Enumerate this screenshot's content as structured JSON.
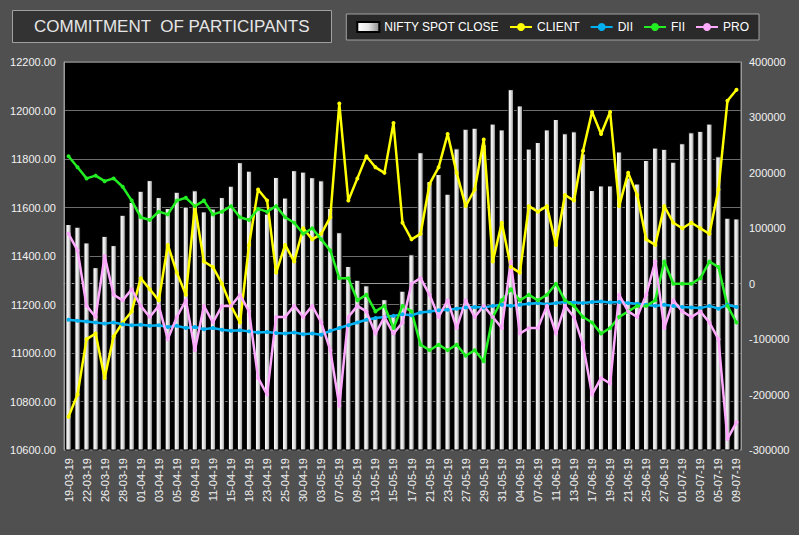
{
  "chart_data": {
    "type": "bar",
    "title": "COMMITMENT  OF PARTICIPANTS",
    "categories": [
      "19-03-19",
      null,
      "22-03-19",
      null,
      "26-03-19",
      null,
      "28-03-19",
      null,
      "01-04-19",
      null,
      "03-04-19",
      null,
      "05-04-19",
      null,
      "09-04-19",
      null,
      "11-04-19",
      null,
      "15-04-19",
      null,
      "18-04-19",
      null,
      "23-04-19",
      null,
      "25-04-19",
      null,
      "30-04-19",
      null,
      "03-05-19",
      null,
      "07-05-19",
      null,
      "09-05-19",
      null,
      "13-05-19",
      null,
      "15-05-19",
      null,
      "17-05-19",
      null,
      "21-05-19",
      null,
      "23-05-19",
      null,
      "27-05-19",
      null,
      "29-05-19",
      null,
      "31-05-19",
      null,
      "04-06-19",
      null,
      "07-06-19",
      null,
      "11-06-19",
      null,
      "13-06-19",
      null,
      "17-06-19",
      null,
      "19-06-19",
      null,
      "21-06-19",
      null,
      "25-06-19",
      null,
      "27-06-19",
      null,
      "01-07-19",
      null,
      "03-07-19",
      null,
      "05-07-19",
      null,
      "09-07-19"
    ],
    "series": [
      {
        "name": "NIFTY SPOT CLOSE",
        "type": "bar",
        "color": "#e6e6e6",
        "values": [
          11532,
          11521,
          11456,
          11354,
          11483,
          11445,
          11570,
          11623,
          11669,
          11713,
          11643,
          11598,
          11665,
          11604,
          11671,
          11584,
          11596,
          11643,
          11690,
          11787,
          11752,
          11594,
          11575,
          11726,
          11641,
          11754,
          11748,
          11725,
          11712,
          11598,
          11498,
          11359,
          11302,
          11279,
          11148,
          11222,
          11157,
          11257,
          11407,
          11828,
          11709,
          11738,
          11657,
          11844,
          11925,
          11929,
          11861,
          11946,
          11922,
          12088,
          12021,
          11843,
          11870,
          11922,
          11965,
          11906,
          11914,
          11823,
          11672,
          11691,
          11691,
          11831,
          11724,
          11699,
          11796,
          11847,
          11842,
          11789,
          11865,
          11910,
          11916,
          11946,
          11811,
          11558,
          11555
        ]
      },
      {
        "name": "CLIENT",
        "type": "line",
        "axis": "y2",
        "color": "#ffff00",
        "marker": "circle",
        "values": [
          -240000,
          -200000,
          -100000,
          -90000,
          -170000,
          -95000,
          -70000,
          -50000,
          10000,
          -10000,
          -30000,
          70000,
          20000,
          -20000,
          140000,
          40000,
          30000,
          0,
          -40000,
          -70000,
          70000,
          170000,
          150000,
          20000,
          70000,
          40000,
          100000,
          80000,
          90000,
          120000,
          325000,
          150000,
          190000,
          230000,
          210000,
          200000,
          290000,
          110000,
          80000,
          90000,
          180000,
          210000,
          270000,
          200000,
          140000,
          170000,
          260000,
          40000,
          110000,
          30000,
          20000,
          140000,
          130000,
          140000,
          70000,
          160000,
          150000,
          240000,
          310000,
          270000,
          310000,
          140000,
          200000,
          160000,
          80000,
          70000,
          140000,
          110000,
          100000,
          110000,
          100000,
          90000,
          170000,
          330000,
          350000
        ]
      },
      {
        "name": "DII",
        "type": "line",
        "axis": "y2",
        "color": "#00b0f0",
        "marker": "circle",
        "values": [
          -65000,
          -67000,
          -68000,
          -70000,
          -72000,
          -70000,
          -73000,
          -75000,
          -74000,
          -76000,
          -75000,
          -78000,
          -76000,
          -80000,
          -78000,
          -82000,
          -80000,
          -83000,
          -85000,
          -84000,
          -86000,
          -88000,
          -87000,
          -89000,
          -90000,
          -88000,
          -91000,
          -90000,
          -92000,
          -85000,
          -80000,
          -75000,
          -70000,
          -65000,
          -62000,
          -60000,
          -58000,
          -55000,
          -57000,
          -52000,
          -50000,
          -48000,
          -47000,
          -45000,
          -43000,
          -42000,
          -43000,
          -40000,
          -38000,
          -40000,
          -38000,
          -36000,
          -35000,
          -37000,
          -35000,
          -33000,
          -34000,
          -35000,
          -33000,
          -32000,
          -34000,
          -33000,
          -35000,
          -36000,
          -38000,
          -40000,
          -38000,
          -40000,
          -42000,
          -43000,
          -44000,
          -40000,
          -45000,
          -38000,
          -42000
        ]
      },
      {
        "name": "FII",
        "type": "line",
        "axis": "y2",
        "color": "#22ee22",
        "marker": "circle",
        "values": [
          230000,
          210000,
          190000,
          195000,
          185000,
          190000,
          175000,
          150000,
          120000,
          115000,
          130000,
          125000,
          150000,
          155000,
          140000,
          150000,
          125000,
          130000,
          140000,
          120000,
          115000,
          135000,
          130000,
          140000,
          120000,
          110000,
          90000,
          100000,
          80000,
          60000,
          10000,
          10000,
          -30000,
          -20000,
          -50000,
          -40000,
          -80000,
          -40000,
          -50000,
          -110000,
          -120000,
          -110000,
          -120000,
          -110000,
          -130000,
          -120000,
          -140000,
          -60000,
          -30000,
          -10000,
          -30000,
          -20000,
          -30000,
          -20000,
          0,
          -30000,
          -40000,
          -60000,
          -70000,
          -90000,
          -80000,
          -60000,
          -50000,
          -40000,
          -40000,
          -30000,
          40000,
          0,
          0,
          0,
          10000,
          40000,
          30000,
          -40000,
          -70000
        ]
      },
      {
        "name": "PRO",
        "type": "line",
        "axis": "y2",
        "color": "#ffaaff",
        "marker": "circle",
        "values": [
          90000,
          60000,
          -40000,
          -60000,
          50000,
          -20000,
          -30000,
          -10000,
          -40000,
          -60000,
          -40000,
          -100000,
          -60000,
          -30000,
          -120000,
          -40000,
          -70000,
          -40000,
          -40000,
          -20000,
          -50000,
          -170000,
          -200000,
          -60000,
          -60000,
          -40000,
          -60000,
          -40000,
          -70000,
          -120000,
          -220000,
          -60000,
          -40000,
          -50000,
          -90000,
          -60000,
          -90000,
          -70000,
          0,
          10000,
          -20000,
          -60000,
          -30000,
          -80000,
          -30000,
          -60000,
          -40000,
          -60000,
          -80000,
          40000,
          -90000,
          -80000,
          -80000,
          -40000,
          -90000,
          -40000,
          -60000,
          -110000,
          -200000,
          -170000,
          -180000,
          -20000,
          -50000,
          -60000,
          -20000,
          40000,
          -80000,
          -30000,
          -50000,
          -60000,
          -50000,
          -70000,
          -100000,
          -280000,
          -250000
        ]
      }
    ],
    "ylim": [
      10600,
      12200
    ],
    "yticks": [
      {
        "value": 10600,
        "label": "10600.00"
      },
      {
        "value": 10800,
        "label": "10800.00"
      },
      {
        "value": 11000,
        "label": "11000.00"
      },
      {
        "value": 11200,
        "label": "11200.00"
      },
      {
        "value": 11400,
        "label": "11400.00"
      },
      {
        "value": 11600,
        "label": "11600.00"
      },
      {
        "value": 11800,
        "label": "11800.00"
      },
      {
        "value": 12000,
        "label": "12000.00"
      },
      {
        "value": 12200,
        "label": "12200.00"
      }
    ],
    "y2lim": [
      -300000,
      400000
    ],
    "y2ticks": [
      -300000,
      -200000,
      -100000,
      0,
      100000,
      200000,
      300000,
      400000
    ],
    "grid": true,
    "legend": "top-right"
  }
}
